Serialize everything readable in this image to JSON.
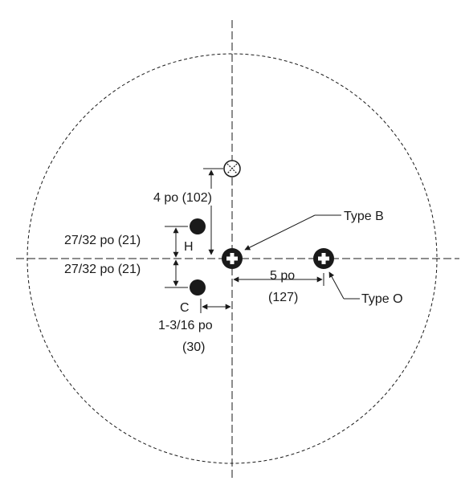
{
  "labels": {
    "type_b": "Type B",
    "type_o": "Type O",
    "four_po": "4 po (102)",
    "h_to_center": "27/32 po (21)",
    "center_to_c": "27/32 po (21)",
    "h": "H",
    "c": "C",
    "c_offset_line1": "1-3/16 po",
    "c_offset_line2": "(30)",
    "five_po_line1": "5 po",
    "five_po_line2": "(127)"
  },
  "colors": {
    "ink": "#1a1a1a",
    "background": "#ffffff"
  },
  "icons": {
    "drain_marker": "crossed-circle-icon",
    "type_b_marker": "plus-circle-icon",
    "type_o_marker": "plus-circle-icon"
  }
}
